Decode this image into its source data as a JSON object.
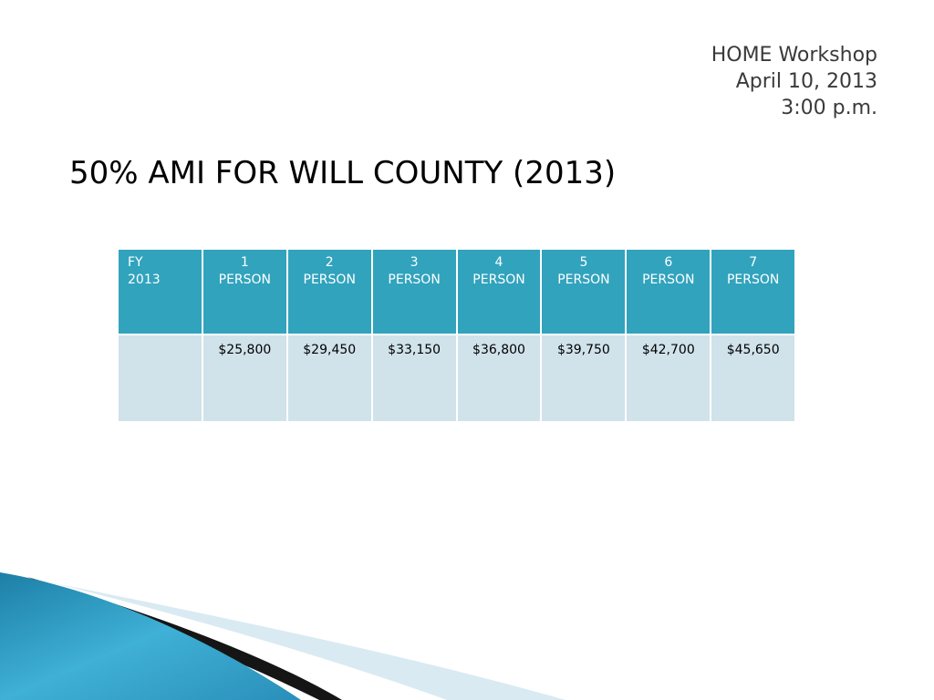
{
  "header": {
    "line1": "HOME Workshop",
    "line2": "April 10, 2013",
    "line3": "3:00 p.m."
  },
  "title": "50% AMI FOR WILL COUNTY (2013)",
  "table": {
    "headers": [
      [
        "FY",
        "2013"
      ],
      [
        "1",
        "PERSON"
      ],
      [
        "2",
        "PERSON"
      ],
      [
        "3",
        "PERSON"
      ],
      [
        "4",
        "PERSON"
      ],
      [
        "5",
        "PERSON"
      ],
      [
        "6",
        "PERSON"
      ],
      [
        "7",
        "PERSON"
      ]
    ],
    "row": [
      "",
      "$25,800",
      "$29,450",
      "$33,150",
      "$36,800",
      "$39,750",
      "$42,700",
      "$45,650"
    ]
  },
  "colors": {
    "header_fill": "#31a3bd",
    "row_fill": "#d0e2ea",
    "swoosh_blue": "#2e9cbf",
    "swoosh_dark": "#1a1a1a",
    "swoosh_light": "#d7e9f1"
  }
}
